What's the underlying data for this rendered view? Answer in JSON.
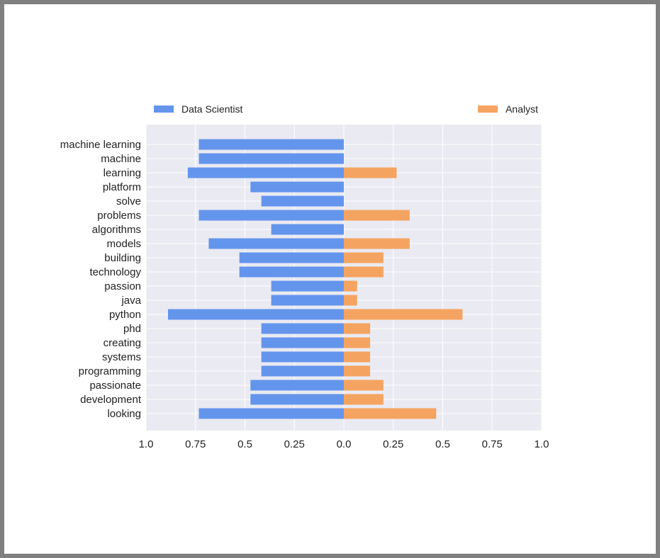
{
  "chart_data": {
    "type": "bar",
    "orientation": "horizontal-diverging",
    "categories": [
      "machine learning",
      "machine",
      "learning",
      "platform",
      "solve",
      "problems",
      "algorithms",
      "models",
      "building",
      "technology",
      "passion",
      "java",
      "python",
      "phd",
      "creating",
      "systems",
      "programming",
      "passionate",
      "development",
      "looking"
    ],
    "series": [
      {
        "name": "Data Scientist",
        "side": "left",
        "color": "#6495ED",
        "values": [
          0.733,
          0.733,
          0.789,
          0.472,
          0.417,
          0.733,
          0.367,
          0.683,
          0.528,
          0.528,
          0.367,
          0.367,
          0.889,
          0.417,
          0.417,
          0.417,
          0.417,
          0.472,
          0.472,
          0.733
        ]
      },
      {
        "name": "Analyst",
        "side": "right",
        "color": "#F4A460",
        "values": [
          0,
          0,
          0.267,
          0,
          0,
          0.333,
          0,
          0.333,
          0.2,
          0.2,
          0.067,
          0.067,
          0.6,
          0.133,
          0.133,
          0.133,
          0.133,
          0.2,
          0.2,
          0.467
        ]
      }
    ],
    "xlim": [
      -1,
      1
    ],
    "x_ticks": [
      -1,
      -0.75,
      -0.5,
      -0.25,
      0,
      0.25,
      0.5,
      0.75,
      1
    ],
    "x_tick_labels": [
      "1.0",
      "0.75",
      "0.5",
      "0.25",
      "0.0",
      "0.25",
      "0.5",
      "0.75",
      "1.0"
    ],
    "title": "",
    "xlabel": "",
    "ylabel": "",
    "grid": true,
    "legend": "top",
    "background_color": "#EAEAF2",
    "grid_color": "#FFFFFF"
  }
}
